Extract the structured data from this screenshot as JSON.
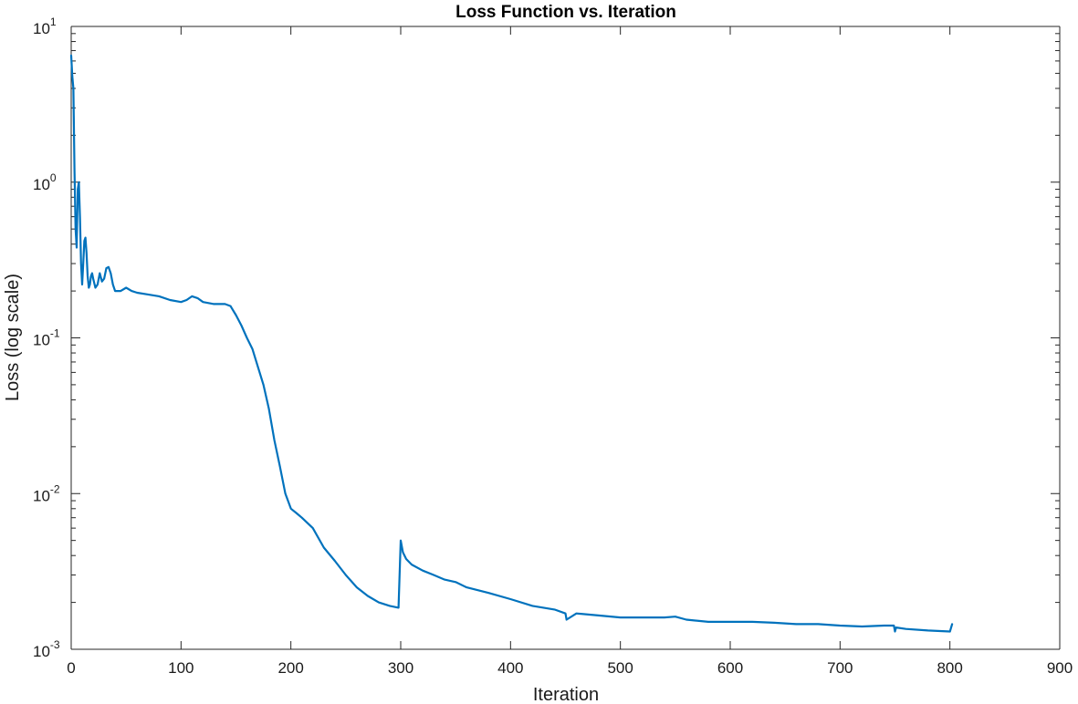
{
  "chart_data": {
    "type": "line",
    "title": "Loss Function vs. Iteration",
    "xlabel": "Iteration",
    "ylabel": "Loss (log scale)",
    "xlim": [
      0,
      900
    ],
    "ylim": [
      0.001,
      10
    ],
    "yscale": "log",
    "grid": false,
    "xticks": [
      "0",
      "100",
      "200",
      "300",
      "400",
      "500",
      "600",
      "700",
      "800",
      "900"
    ],
    "yticks": [
      {
        "base": "10",
        "exp": "-3"
      },
      {
        "base": "10",
        "exp": "-2"
      },
      {
        "base": "10",
        "exp": "-1"
      },
      {
        "base": "10",
        "exp": "0"
      },
      {
        "base": "10",
        "exp": "1"
      }
    ],
    "series": [
      {
        "color": "#0072BD",
        "x": [
          0,
          1,
          2,
          3,
          4,
          5,
          6,
          7,
          8,
          9,
          10,
          11,
          12,
          13,
          14,
          15,
          16,
          17,
          18,
          19,
          20,
          22,
          24,
          26,
          28,
          30,
          32,
          34,
          36,
          38,
          40,
          45,
          50,
          55,
          60,
          70,
          80,
          90,
          100,
          105,
          110,
          115,
          120,
          130,
          140,
          145,
          150,
          155,
          160,
          165,
          170,
          175,
          180,
          185,
          190,
          195,
          200,
          205,
          210,
          220,
          230,
          240,
          250,
          260,
          270,
          280,
          290,
          298,
          300,
          302,
          305,
          310,
          320,
          330,
          340,
          350,
          360,
          380,
          400,
          420,
          440,
          450,
          451,
          460,
          480,
          500,
          520,
          540,
          550,
          560,
          580,
          600,
          620,
          640,
          660,
          680,
          700,
          720,
          740,
          749,
          750,
          751,
          760,
          780,
          800,
          802
        ],
        "y": [
          6.5,
          4.8,
          4.0,
          1.2,
          0.5,
          0.38,
          0.9,
          1.0,
          0.6,
          0.3,
          0.22,
          0.3,
          0.42,
          0.44,
          0.35,
          0.25,
          0.21,
          0.22,
          0.25,
          0.26,
          0.24,
          0.21,
          0.22,
          0.26,
          0.23,
          0.24,
          0.28,
          0.285,
          0.26,
          0.22,
          0.2,
          0.2,
          0.21,
          0.2,
          0.195,
          0.19,
          0.185,
          0.175,
          0.17,
          0.175,
          0.185,
          0.18,
          0.17,
          0.165,
          0.165,
          0.16,
          0.14,
          0.12,
          0.1,
          0.085,
          0.065,
          0.05,
          0.035,
          0.022,
          0.015,
          0.01,
          0.008,
          0.0075,
          0.007,
          0.006,
          0.0045,
          0.0037,
          0.003,
          0.0025,
          0.0022,
          0.002,
          0.0019,
          0.00185,
          0.005,
          0.0042,
          0.0038,
          0.0035,
          0.0032,
          0.003,
          0.0028,
          0.0027,
          0.0025,
          0.0023,
          0.0021,
          0.0019,
          0.0018,
          0.0017,
          0.00155,
          0.0017,
          0.00165,
          0.0016,
          0.0016,
          0.0016,
          0.00162,
          0.00155,
          0.0015,
          0.0015,
          0.0015,
          0.00148,
          0.00145,
          0.00145,
          0.00142,
          0.0014,
          0.00142,
          0.00142,
          0.0013,
          0.00138,
          0.00135,
          0.00132,
          0.0013,
          0.00145
        ]
      }
    ]
  }
}
